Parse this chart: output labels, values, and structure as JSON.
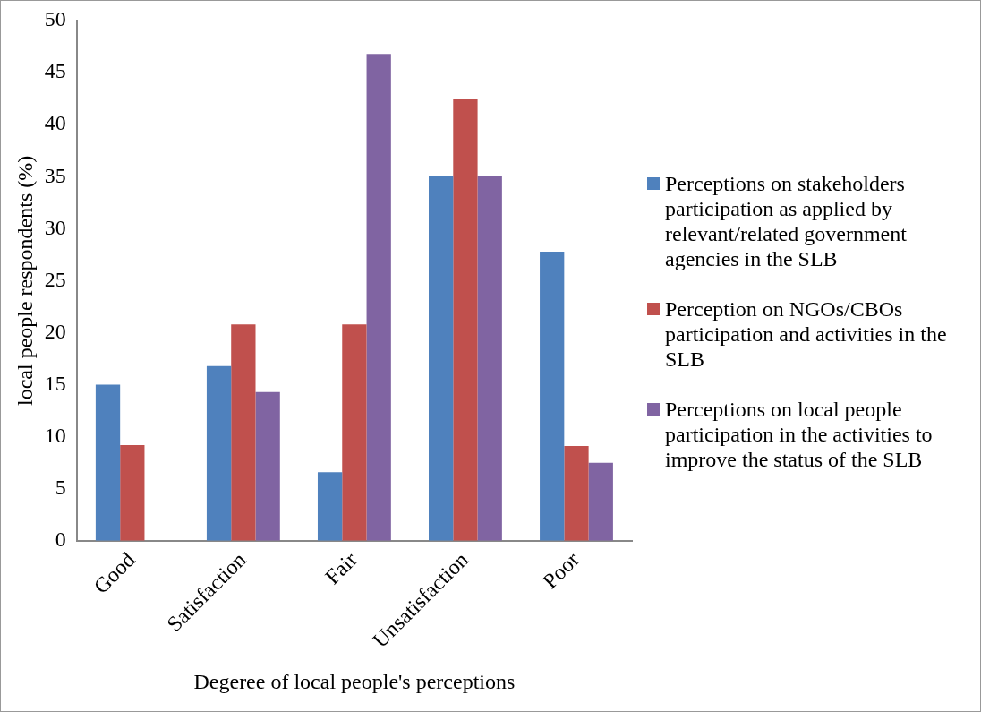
{
  "chart_data": {
    "type": "bar",
    "xlabel": "Degeree of local people's perceptions",
    "ylabel": "local people respondents (%)",
    "categories": [
      "Good",
      "Satisfaction",
      "Fair",
      "Unsatisfaction",
      "Poor"
    ],
    "series": [
      {
        "name": "Perceptions on stakeholders participation as applied by relevant/related government agencies in the SLB",
        "color": "#4f81bd",
        "values": [
          15.0,
          16.8,
          6.6,
          35.1,
          27.8
        ]
      },
      {
        "name": "Perception on NGOs/CBOs participation and activities in the SLB",
        "color": "#c0504d",
        "values": [
          9.2,
          20.8,
          20.8,
          42.5,
          9.1
        ]
      },
      {
        "name": "Perceptions on local people participation in the activities to improve the status of the SLB",
        "color": "#8064a2",
        "values": [
          0,
          14.3,
          46.8,
          35.1,
          7.5
        ]
      }
    ],
    "ylim": [
      0,
      50
    ],
    "yticks": [
      0,
      5,
      10,
      15,
      20,
      25,
      30,
      35,
      40,
      45,
      50
    ],
    "grid": false,
    "legend": "right"
  }
}
